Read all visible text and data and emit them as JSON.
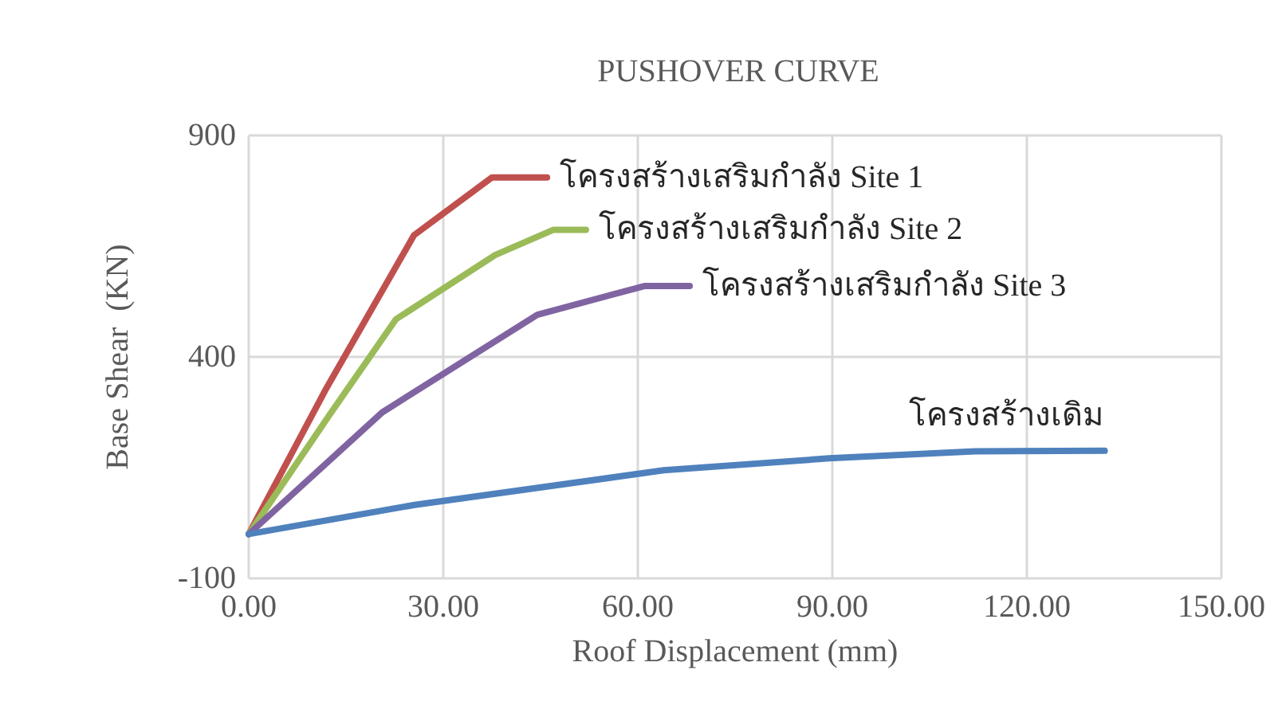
{
  "chart_data": {
    "type": "line",
    "title": "PUSHOVER CURVE",
    "xlabel": "Roof Displacement (mm)",
    "ylabel": "Base Shear  (KN)",
    "xlim": [
      0,
      150
    ],
    "xticks": [
      {
        "value": 0,
        "label": "0.00"
      },
      {
        "value": 30,
        "label": "30.00"
      },
      {
        "value": 60,
        "label": "60.00"
      },
      {
        "value": 90,
        "label": "90.00"
      },
      {
        "value": 120,
        "label": "120.00"
      },
      {
        "value": 150,
        "label": "150.00"
      }
    ],
    "ylim": [
      -100,
      900
    ],
    "yticks": [
      -100,
      400,
      900
    ],
    "grid": true,
    "marker": "none",
    "line_style": "solid",
    "series": [
      {
        "name": "โครงสร้างเสริมกำลัง Site 1",
        "color": "#c0504d",
        "x": [
          0,
          12,
          25.5,
          37.5,
          46
        ],
        "values": [
          0,
          330,
          675,
          805,
          805
        ]
      },
      {
        "name": "โครงสร้างเสริมกำลัง Site 2",
        "color": "#9bbb59",
        "x": [
          0,
          12.5,
          22.7,
          38,
          47,
          52
        ],
        "values": [
          0,
          270,
          485,
          630,
          687,
          687
        ]
      },
      {
        "name": "โครงสร้างเสริมกำลัง Site 3",
        "color": "#8064a2",
        "x": [
          0,
          20.6,
          44.5,
          61,
          68
        ],
        "values": [
          0,
          275,
          495,
          560,
          560
        ]
      },
      {
        "name": "โครงสร้างเดิม",
        "color": "#4f81bd",
        "x": [
          0,
          25.6,
          64,
          89.5,
          112,
          132
        ],
        "values": [
          0,
          66,
          144,
          171,
          187,
          188
        ]
      }
    ]
  }
}
